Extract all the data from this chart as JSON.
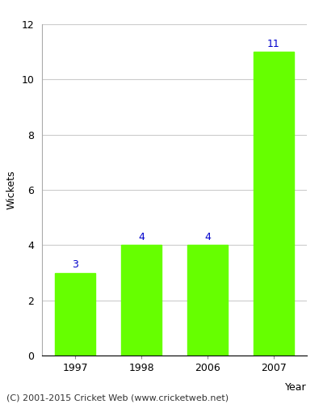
{
  "categories": [
    "1997",
    "1998",
    "2006",
    "2007"
  ],
  "values": [
    3,
    4,
    4,
    11
  ],
  "bar_color": "#66ff00",
  "bar_edgecolor": "#66ff00",
  "ylabel": "Wickets",
  "xlabel": "Year",
  "ylim": [
    0,
    12
  ],
  "yticks": [
    0,
    2,
    4,
    6,
    8,
    10,
    12
  ],
  "annotation_color": "#0000cc",
  "annotation_fontsize": 9,
  "grid_color": "#cccccc",
  "footer_text": "(C) 2001-2015 Cricket Web (www.cricketweb.net)",
  "footer_fontsize": 8,
  "axis_label_fontsize": 9,
  "tick_fontsize": 9,
  "background_color": "#ffffff"
}
